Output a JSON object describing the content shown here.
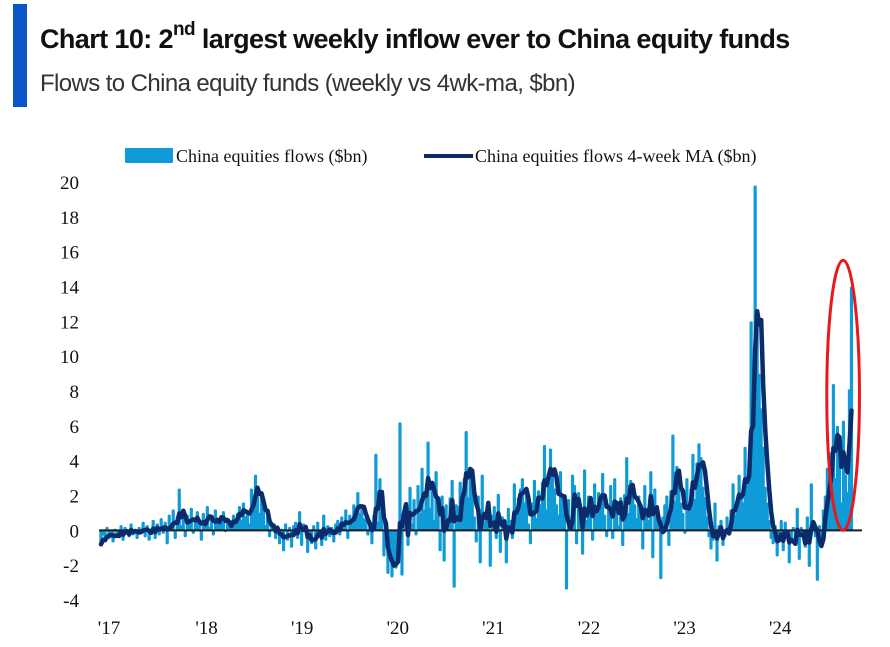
{
  "header": {
    "title_prefix": "Chart 10: 2",
    "title_sup": "nd",
    "title_suffix": " largest weekly inflow ever to China equity funds",
    "subtitle": "Flows to China equity funds (weekly vs 4wk-ma, $bn)",
    "accent_color": "#0a55c8"
  },
  "chart_data": {
    "type": "bar",
    "title": "Chart 10: 2nd largest weekly inflow ever to China equity funds",
    "subtitle": "Flows to China equity funds (weekly vs 4wk-ma, $bn)",
    "xlabel": "",
    "ylabel": "",
    "ylim": [
      -4,
      20
    ],
    "yticks": [
      20,
      18,
      16,
      14,
      12,
      10,
      8,
      6,
      4,
      2,
      0,
      -2,
      -4
    ],
    "xticks": [
      "'17",
      "'18",
      "'19",
      "'20",
      "'21",
      "'22",
      "'23",
      "'24"
    ],
    "xrange_years": [
      2017.0,
      2024.85
    ],
    "grid": false,
    "legend_position": "top",
    "frequency": "weekly (sampled)",
    "annotation": {
      "type": "ellipse",
      "color": "#e8191c",
      "label": "latest weeks highlighted",
      "x_years": [
        2024.55,
        2024.85
      ],
      "y_range": [
        0,
        15.5
      ]
    },
    "series": [
      {
        "name": "China equities flows ($bn)",
        "kind": "bar",
        "color": "#0f9bd7",
        "start_year": 2017.0,
        "step_years": 0.0192,
        "values": [
          -0.8,
          -0.3,
          -0.6,
          0.2,
          -0.5,
          -0.2,
          -0.7,
          0.1,
          -0.4,
          -0.3,
          0.3,
          -0.6,
          0.2,
          -0.1,
          -0.4,
          0.4,
          -0.3,
          0.1,
          -0.5,
          0.2,
          -0.2,
          0.5,
          -0.4,
          0.3,
          -0.6,
          0.1,
          0.6,
          -0.5,
          0.4,
          -0.3,
          0.7,
          -0.2,
          0.5,
          -0.8,
          0.9,
          0.2,
          1.2,
          -0.5,
          0.8,
          2.4,
          0.3,
          1.0,
          -0.4,
          0.9,
          0.5,
          1.3,
          -0.2,
          0.7,
          1.1,
          0.4,
          -0.6,
          1.0,
          0.6,
          1.4,
          0.2,
          0.9,
          -0.3,
          1.2,
          0.6,
          0.4,
          0.8,
          1.1,
          -0.1,
          0.6,
          0.3,
          0.2,
          0.9,
          0.5,
          1.0,
          1.4,
          0.6,
          1.6,
          0.8,
          1.1,
          0.4,
          2.4,
          1.9,
          3.2,
          2.3,
          1.0,
          2.0,
          1.4,
          0.3,
          0.8,
          -0.4,
          0.5,
          0.2,
          -0.5,
          0.3,
          -0.8,
          0.1,
          -1.2,
          0.4,
          -0.6,
          0.2,
          -1.0,
          0.3,
          0.5,
          -0.5,
          1.1,
          -0.9,
          0.4,
          0.2,
          -1.3,
          -0.4,
          -0.8,
          0.3,
          -1.1,
          0.5,
          -0.2,
          -0.9,
          0.9,
          -0.6,
          0.3,
          -0.4,
          0.2,
          -0.7,
          0.4,
          0.6,
          -0.3,
          0.8,
          0.2,
          1.2,
          -0.5,
          0.9,
          0.6,
          1.5,
          0.8,
          2.2,
          1.0,
          1.5,
          0.7,
          0.6,
          -0.3,
          0.5,
          -0.8,
          0.9,
          4.4,
          0.5,
          3.0,
          0.9,
          -1.5,
          -0.7,
          -2.5,
          -1.1,
          -2.7,
          -1.8,
          -2.2,
          -0.5,
          6.2,
          -2.6,
          0.8,
          1.6,
          -0.9,
          2.5,
          0.4,
          1.8,
          -0.3,
          2.6,
          1.0,
          3.6,
          1.2,
          2.1,
          5.1,
          1.3,
          2.4,
          0.6,
          3.4,
          0.9,
          -1.2,
          2.0,
          -1.8,
          1.5,
          0.6,
          1.9,
          2.9,
          -3.3,
          1.5,
          1.4,
          2.8,
          1.6,
          3.0,
          5.7,
          1.9,
          3.5,
          2.6,
          0.8,
          -0.7,
          2.0,
          -1.9,
          3.2,
          0.5,
          1.0,
          1.6,
          -2.1,
          0.9,
          1.4,
          -0.5,
          2.1,
          -1.3,
          0.8,
          0.5,
          -1.9,
          1.3,
          0.6,
          -0.5,
          2.7,
          1.2,
          1.9,
          2.4,
          3.0,
          1.6,
          2.5,
          0.4,
          -0.8,
          1.6,
          2.9,
          0.7,
          2.3,
          1.5,
          2.8,
          4.9,
          1.2,
          3.3,
          4.7,
          3.6,
          2.4,
          1.5,
          0.9,
          3.4,
          2.1,
          1.4,
          -3.4,
          1.8,
          0.6,
          3.2,
          2.6,
          -0.8,
          2.2,
          0.7,
          -1.4,
          3.5,
          0.6,
          2.0,
          1.3,
          -0.6,
          2.7,
          1.0,
          2.2,
          1.6,
          3.3,
          0.9,
          -0.4,
          1.5,
          2.6,
          -0.5,
          3.0,
          1.2,
          0.3,
          1.9,
          -0.9,
          2.1,
          4.2,
          1.0,
          2.9,
          2.3,
          1.5,
          0.7,
          2.0,
          1.2,
          -1.1,
          2.6,
          1.3,
          0.6,
          3.4,
          -1.6,
          2.4,
          1.1,
          0.5,
          -2.8,
          0.8,
          1.5,
          2.0,
          -0.9,
          2.3,
          5.5,
          1.7,
          3.7,
          2.8,
          1.6,
          1.0,
          -0.2,
          3.0,
          1.2,
          2.4,
          4.4,
          1.8,
          3.9,
          5.0,
          4.2,
          2.5,
          1.9,
          0.8,
          -0.4,
          -1.1,
          -0.6,
          1.6,
          -1.8,
          0.3,
          0.6,
          -0.9,
          -0.4,
          0.8,
          -0.2,
          1.2,
          2.7,
          0.9,
          1.4,
          3.2,
          2.1,
          1.6,
          4.8,
          2.6,
          3.4,
          12.0,
          6.0,
          19.8,
          12.5,
          9.0,
          7.0,
          4.8,
          2.5,
          1.6,
          0.6,
          -0.5,
          -0.8,
          0.3,
          -1.5,
          -0.3,
          0.6,
          -1.2,
          0.5,
          -0.2,
          -1.9,
          -0.6,
          0.2,
          -0.8,
          1.3,
          -1.7,
          0.2,
          -0.5,
          -1.0,
          0.8,
          -2.1,
          2.7,
          0.5,
          -0.4,
          -2.9,
          0.3,
          -0.6,
          1.2,
          2.0,
          3.6,
          2.4,
          4.5,
          8.4,
          3.0,
          6.0,
          4.0,
          1.6,
          6.3,
          3.2,
          2.2,
          8.1,
          14.0
        ]
      },
      {
        "name": "China equities flows 4-week MA ($bn)",
        "kind": "line",
        "color": "#0c2b6b",
        "method": "4-week trailing moving average of weekly flows"
      }
    ]
  },
  "legend": {
    "flows_label": "China equities flows ($bn)",
    "ma_label": "China equities flows 4-week MA ($bn)"
  },
  "colors": {
    "bars": "#0f9bd7",
    "ma_line": "#0c2b6b",
    "zero_line": "#1a1a1a",
    "highlight": "#e8191c"
  }
}
